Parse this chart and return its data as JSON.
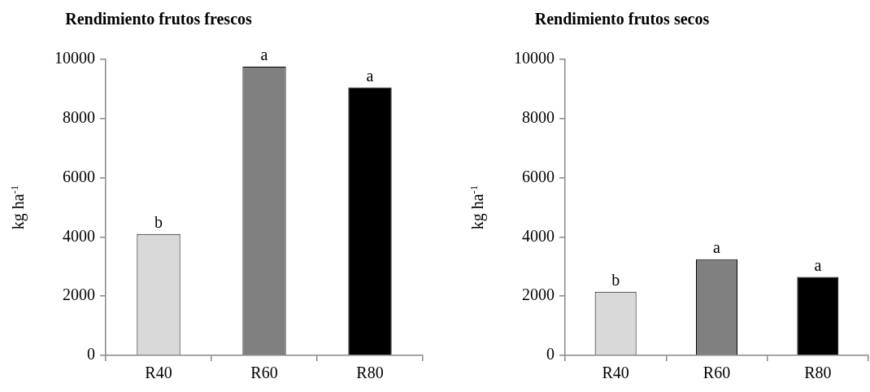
{
  "chart_data": [
    {
      "type": "bar",
      "title": "Rendimiento frutos frescos",
      "ylabel": "kg ha$^{-1}$",
      "categories": [
        "R40",
        "R60",
        "R80"
      ],
      "values": [
        4100,
        9750,
        9050
      ],
      "colors": [
        "#d9d9d9",
        "#808080",
        "#000000"
      ],
      "ylim": [
        0,
        10000
      ],
      "yticks": [
        0,
        2000,
        4000,
        6000,
        8000,
        10000
      ],
      "annotations": [
        {
          "text": "b",
          "x": "R40",
          "y": 4100
        },
        {
          "text": "a",
          "x": "R60",
          "y": 9750
        },
        {
          "text": "a",
          "x": "R80",
          "y": 9050
        }
      ]
    },
    {
      "type": "bar",
      "title": "Rendimiento frutos secos",
      "ylabel": "kg ha$^{-1}$",
      "categories": [
        "R40",
        "R60",
        "R80"
      ],
      "values": [
        2150,
        3250,
        2650
      ],
      "colors": [
        "#d9d9d9",
        "#808080",
        "#000000"
      ],
      "ylim": [
        0,
        10000
      ],
      "yticks": [
        0,
        2000,
        4000,
        6000,
        8000,
        10000
      ],
      "annotations": [
        {
          "text": "b",
          "x": "R40",
          "y": 2150
        },
        {
          "text": "a",
          "x": "R60",
          "y": 3250
        },
        {
          "text": "a",
          "x": "R80",
          "y": 2650
        }
      ]
    }
  ]
}
